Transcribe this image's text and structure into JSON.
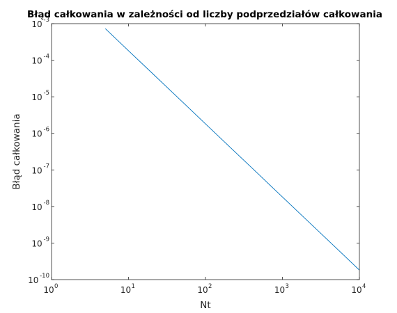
{
  "chart_data": {
    "type": "line",
    "title": "Błąd całkowania w zależności od liczby podprzedziałów całkowania",
    "xlabel": "Nt",
    "ylabel": "Błąd całkowania",
    "xscale": "log",
    "yscale": "log",
    "xlim": [
      1,
      10000
    ],
    "ylim": [
      1e-10,
      0.001
    ],
    "grid": false,
    "legend": "none",
    "x_ticks": [
      {
        "base": "10",
        "exp": "0",
        "value": 1
      },
      {
        "base": "10",
        "exp": "1",
        "value": 10
      },
      {
        "base": "10",
        "exp": "2",
        "value": 100
      },
      {
        "base": "10",
        "exp": "3",
        "value": 1000
      },
      {
        "base": "10",
        "exp": "4",
        "value": 10000
      }
    ],
    "y_ticks": [
      {
        "base": "10",
        "exp": "-10",
        "value": 1e-10
      },
      {
        "base": "10",
        "exp": "-9",
        "value": 1e-09
      },
      {
        "base": "10",
        "exp": "-8",
        "value": 1e-08
      },
      {
        "base": "10",
        "exp": "-7",
        "value": 1e-07
      },
      {
        "base": "10",
        "exp": "-6",
        "value": 1e-06
      },
      {
        "base": "10",
        "exp": "-5",
        "value": 1e-05
      },
      {
        "base": "10",
        "exp": "-4",
        "value": 0.0001
      },
      {
        "base": "10",
        "exp": "-3",
        "value": 0.001
      }
    ],
    "series": [
      {
        "color": "#0072BD",
        "points": [
          [
            5,
            0.00073
          ],
          [
            10,
            0.000182
          ],
          [
            20,
            4.56e-05
          ],
          [
            50,
            7.3e-06
          ],
          [
            100,
            1.82e-06
          ],
          [
            200,
            4.56e-07
          ],
          [
            500,
            7.3e-08
          ],
          [
            1000,
            1.82e-08
          ],
          [
            2000,
            4.56e-09
          ],
          [
            5000,
            7.3e-10
          ],
          [
            10000,
            1.82e-10
          ]
        ]
      }
    ]
  }
}
